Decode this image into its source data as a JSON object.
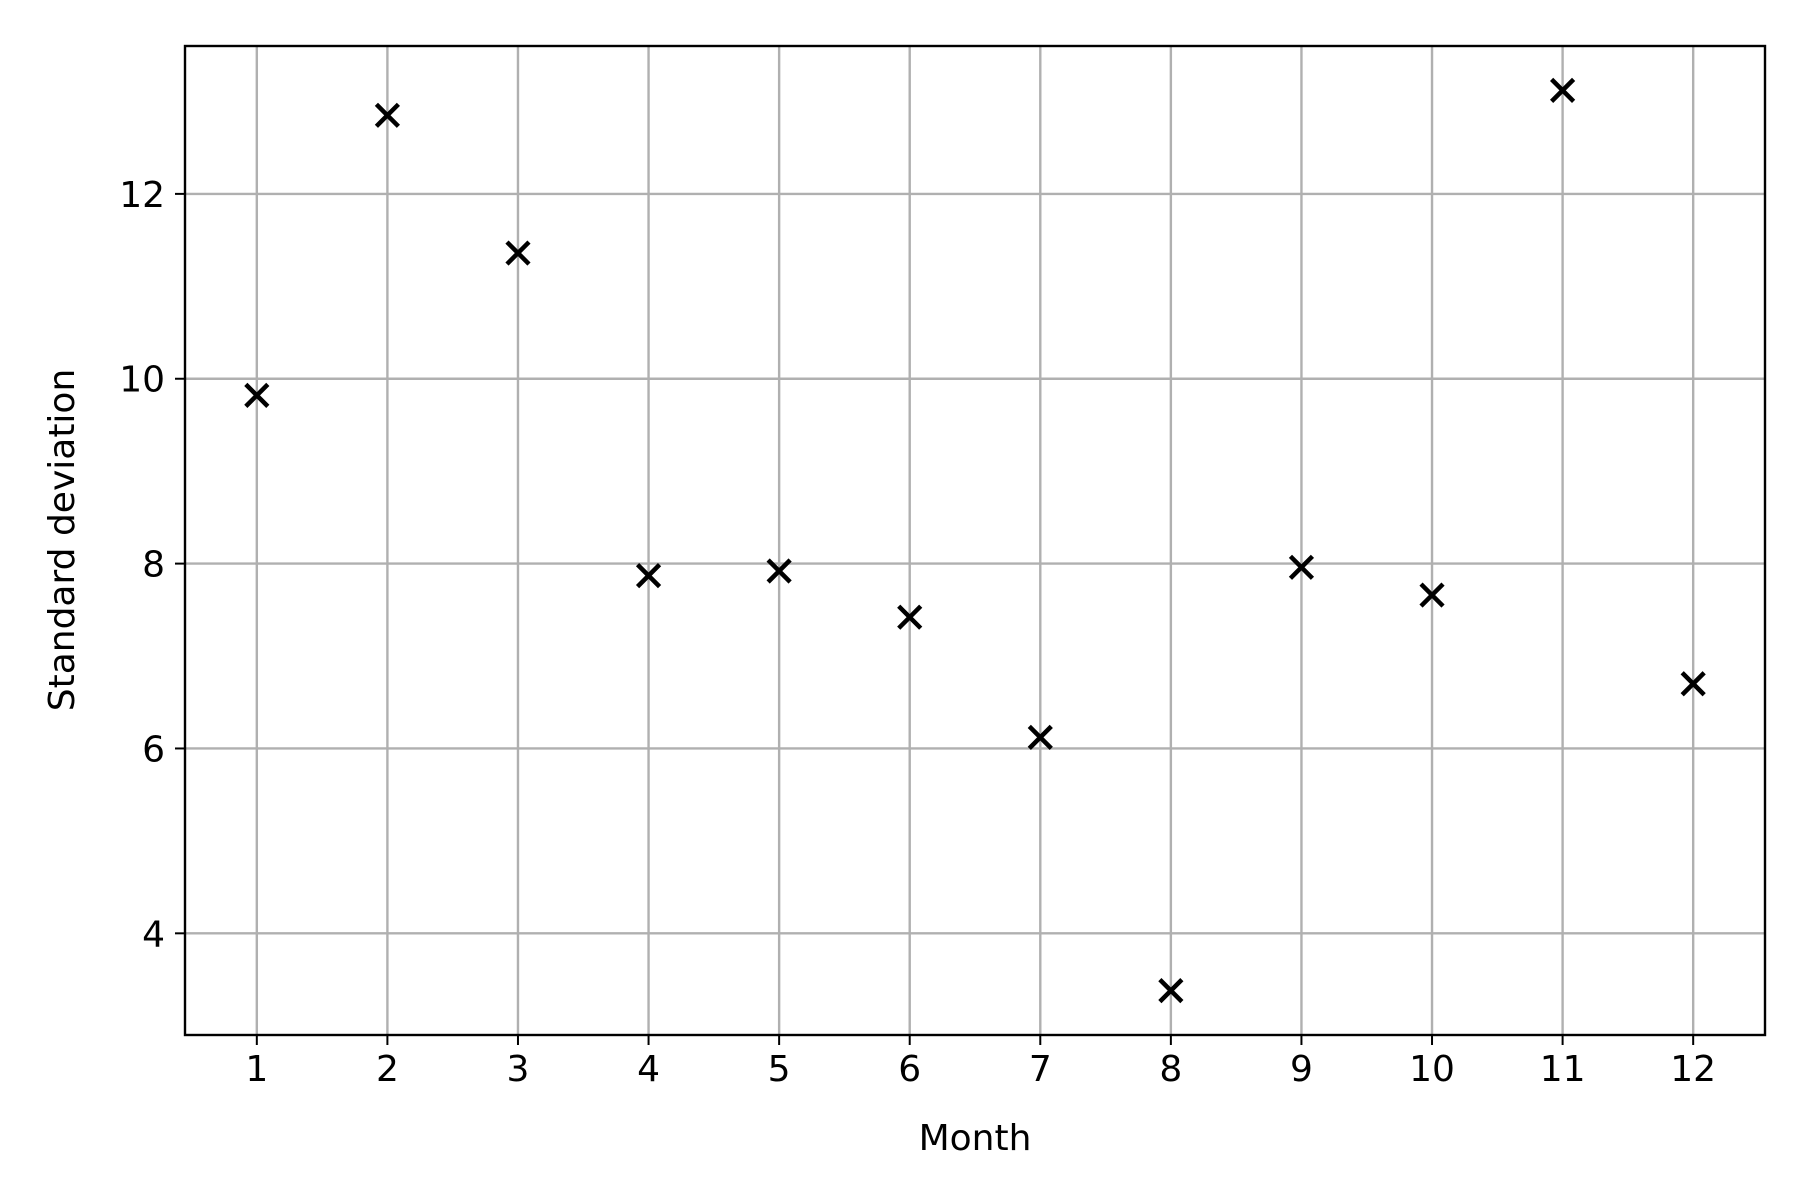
{
  "chart_data": {
    "type": "scatter",
    "title": "",
    "xlabel": "Month",
    "ylabel": "Standard deviation",
    "x": [
      1,
      2,
      3,
      4,
      5,
      6,
      7,
      8,
      9,
      10,
      11,
      12
    ],
    "y": [
      9.82,
      12.85,
      11.36,
      7.87,
      7.92,
      7.42,
      6.12,
      3.38,
      7.96,
      7.66,
      13.12,
      6.7
    ],
    "xticks": [
      1,
      2,
      3,
      4,
      5,
      6,
      7,
      8,
      9,
      10,
      11,
      12
    ],
    "yticks": [
      4,
      6,
      8,
      10,
      12
    ],
    "xlim": [
      0.45,
      12.55
    ],
    "ylim": [
      2.9,
      13.6
    ],
    "grid": true,
    "marker": "x",
    "marker_color": "#000000",
    "grid_color": "#b0b0b0"
  }
}
